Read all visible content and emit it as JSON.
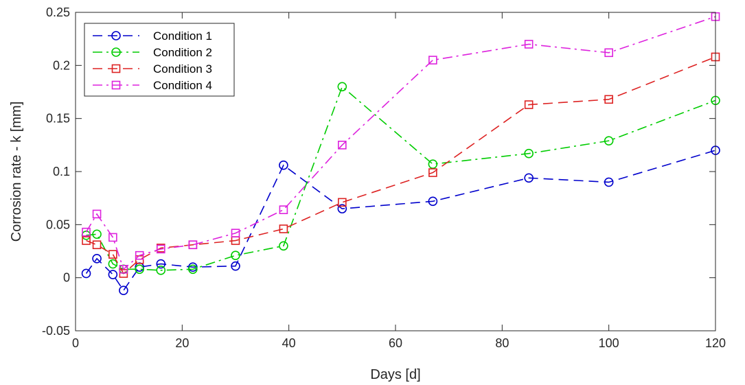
{
  "chart_data": {
    "type": "line",
    "title": "",
    "xlabel": "Days [d]",
    "ylabel": "Corrosion rate - k [mm]",
    "xlim": [
      0,
      120
    ],
    "ylim": [
      -0.05,
      0.25
    ],
    "xticks": [
      0,
      20,
      40,
      60,
      80,
      100,
      120
    ],
    "xtick_labels": [
      "0",
      "20",
      "40",
      "60",
      "80",
      "100",
      "120"
    ],
    "yticks": [
      -0.05,
      0,
      0.05,
      0.1,
      0.15,
      0.2,
      0.25
    ],
    "ytick_labels": [
      "-0.05",
      "0",
      "0.05",
      "0.1",
      "0.15",
      "0.2",
      "0.25"
    ],
    "grid": false,
    "box": true,
    "legend_position": "top-left",
    "series": [
      {
        "name": "Condition 1",
        "color": "#0000CC",
        "line_style": "dashed",
        "marker": "circle",
        "x": [
          2,
          4,
          7,
          9,
          12,
          16,
          22,
          30,
          39,
          50,
          67,
          85,
          100,
          120
        ],
        "y": [
          0.004,
          0.018,
          0.003,
          -0.012,
          0.01,
          0.013,
          0.01,
          0.011,
          0.106,
          0.065,
          0.072,
          0.094,
          0.09,
          0.12
        ]
      },
      {
        "name": "Condition 2",
        "color": "#00CC00",
        "line_style": "dashdot",
        "marker": "circle",
        "x": [
          2,
          4,
          7,
          9,
          12,
          16,
          22,
          30,
          39,
          50,
          67,
          85,
          100,
          120
        ],
        "y": [
          0.04,
          0.041,
          0.013,
          0.008,
          0.008,
          0.007,
          0.008,
          0.021,
          0.03,
          0.18,
          0.107,
          0.117,
          0.129,
          0.167
        ]
      },
      {
        "name": "Condition 3",
        "color": "#DD2222",
        "line_style": "dashed",
        "marker": "square",
        "x": [
          2,
          4,
          7,
          9,
          12,
          16,
          22,
          30,
          39,
          50,
          67,
          85,
          100,
          120
        ],
        "y": [
          0.035,
          0.031,
          0.022,
          0.004,
          0.017,
          0.028,
          0.031,
          0.035,
          0.046,
          0.071,
          0.099,
          0.163,
          0.168,
          0.208
        ]
      },
      {
        "name": "Condition 4",
        "color": "#DD22DD",
        "line_style": "dashdot",
        "marker": "square",
        "x": [
          2,
          4,
          7,
          9,
          12,
          16,
          22,
          30,
          39,
          50,
          67,
          85,
          100,
          120
        ],
        "y": [
          0.043,
          0.06,
          0.038,
          0.008,
          0.021,
          0.027,
          0.031,
          0.042,
          0.064,
          0.125,
          0.205,
          0.22,
          0.212,
          0.246
        ]
      }
    ]
  }
}
